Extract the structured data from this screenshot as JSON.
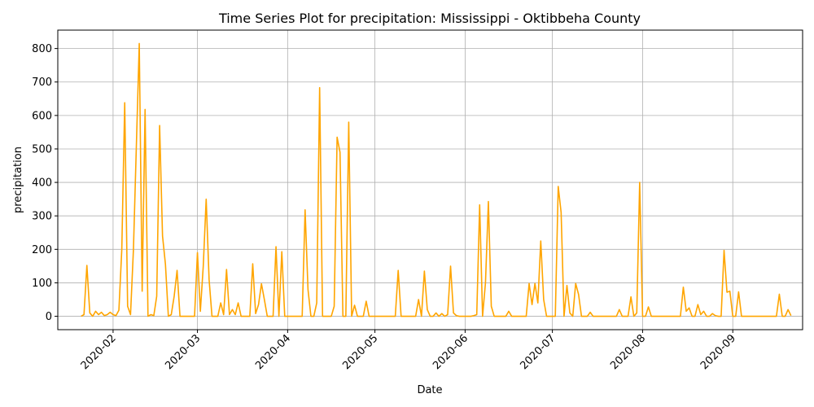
{
  "chart_data": {
    "type": "line",
    "title": "Time Series Plot for precipitation: Mississippi - Oktibbeha County",
    "xlabel": "Date",
    "ylabel": "precipitation",
    "ylim": [
      -40,
      855
    ],
    "xlim": [
      "2020-01-13",
      "2020-09-25"
    ],
    "grid": true,
    "line_color": "#ffa500",
    "yticks": [
      0,
      100,
      200,
      300,
      400,
      500,
      600,
      700,
      800
    ],
    "xticks": [
      {
        "date": "2020-02-01",
        "label": "2020-02"
      },
      {
        "date": "2020-03-01",
        "label": "2020-03"
      },
      {
        "date": "2020-04-01",
        "label": "2020-04"
      },
      {
        "date": "2020-05-01",
        "label": "2020-05"
      },
      {
        "date": "2020-06-01",
        "label": "2020-06"
      },
      {
        "date": "2020-07-01",
        "label": "2020-07"
      },
      {
        "date": "2020-08-01",
        "label": "2020-08"
      },
      {
        "date": "2020-09-01",
        "label": "2020-09"
      }
    ],
    "series": [
      {
        "points": [
          [
            "2020-01-21",
            0
          ],
          [
            "2020-01-22",
            5
          ],
          [
            "2020-01-23",
            152
          ],
          [
            "2020-01-24",
            10
          ],
          [
            "2020-01-25",
            0
          ],
          [
            "2020-01-26",
            15
          ],
          [
            "2020-01-27",
            5
          ],
          [
            "2020-01-28",
            12
          ],
          [
            "2020-01-29",
            2
          ],
          [
            "2020-01-30",
            5
          ],
          [
            "2020-01-31",
            12
          ],
          [
            "2020-02-01",
            5
          ],
          [
            "2020-02-02",
            2
          ],
          [
            "2020-02-03",
            18
          ],
          [
            "2020-02-04",
            200
          ],
          [
            "2020-02-05",
            638
          ],
          [
            "2020-02-06",
            30
          ],
          [
            "2020-02-07",
            5
          ],
          [
            "2020-02-08",
            200
          ],
          [
            "2020-02-10",
            815
          ],
          [
            "2020-02-11",
            75
          ],
          [
            "2020-02-12",
            618
          ],
          [
            "2020-02-13",
            0
          ],
          [
            "2020-02-14",
            5
          ],
          [
            "2020-02-15",
            2
          ],
          [
            "2020-02-16",
            60
          ],
          [
            "2020-02-17",
            570
          ],
          [
            "2020-02-18",
            240
          ],
          [
            "2020-02-19",
            155
          ],
          [
            "2020-02-20",
            0
          ],
          [
            "2020-02-21",
            5
          ],
          [
            "2020-02-22",
            60
          ],
          [
            "2020-02-23",
            137
          ],
          [
            "2020-02-24",
            0
          ],
          [
            "2020-02-25",
            0
          ],
          [
            "2020-02-26",
            0
          ],
          [
            "2020-02-27",
            0
          ],
          [
            "2020-02-28",
            0
          ],
          [
            "2020-02-29",
            0
          ],
          [
            "2020-03-01",
            190
          ],
          [
            "2020-03-02",
            15
          ],
          [
            "2020-03-03",
            150
          ],
          [
            "2020-03-04",
            350
          ],
          [
            "2020-03-05",
            110
          ],
          [
            "2020-03-06",
            0
          ],
          [
            "2020-03-07",
            0
          ],
          [
            "2020-03-08",
            0
          ],
          [
            "2020-03-09",
            40
          ],
          [
            "2020-03-10",
            5
          ],
          [
            "2020-03-11",
            140
          ],
          [
            "2020-03-12",
            5
          ],
          [
            "2020-03-13",
            20
          ],
          [
            "2020-03-14",
            5
          ],
          [
            "2020-03-15",
            40
          ],
          [
            "2020-03-16",
            0
          ],
          [
            "2020-03-17",
            0
          ],
          [
            "2020-03-18",
            0
          ],
          [
            "2020-03-19",
            0
          ],
          [
            "2020-03-20",
            157
          ],
          [
            "2020-03-21",
            8
          ],
          [
            "2020-03-22",
            35
          ],
          [
            "2020-03-23",
            97
          ],
          [
            "2020-03-24",
            50
          ],
          [
            "2020-03-25",
            0
          ],
          [
            "2020-03-26",
            0
          ],
          [
            "2020-03-27",
            0
          ],
          [
            "2020-03-28",
            208
          ],
          [
            "2020-03-29",
            0
          ],
          [
            "2020-03-30",
            193
          ],
          [
            "2020-03-31",
            0
          ],
          [
            "2020-04-01",
            0
          ],
          [
            "2020-04-02",
            0
          ],
          [
            "2020-04-03",
            0
          ],
          [
            "2020-04-04",
            0
          ],
          [
            "2020-04-05",
            0
          ],
          [
            "2020-04-06",
            0
          ],
          [
            "2020-04-07",
            318
          ],
          [
            "2020-04-08",
            80
          ],
          [
            "2020-04-09",
            0
          ],
          [
            "2020-04-10",
            0
          ],
          [
            "2020-04-11",
            40
          ],
          [
            "2020-04-12",
            683
          ],
          [
            "2020-04-13",
            0
          ],
          [
            "2020-04-14",
            0
          ],
          [
            "2020-04-15",
            0
          ],
          [
            "2020-04-16",
            0
          ],
          [
            "2020-04-17",
            30
          ],
          [
            "2020-04-18",
            535
          ],
          [
            "2020-04-19",
            490
          ],
          [
            "2020-04-20",
            0
          ],
          [
            "2020-04-21",
            0
          ],
          [
            "2020-04-22",
            580
          ],
          [
            "2020-04-23",
            0
          ],
          [
            "2020-04-24",
            33
          ],
          [
            "2020-04-25",
            0
          ],
          [
            "2020-04-26",
            0
          ],
          [
            "2020-04-27",
            0
          ],
          [
            "2020-04-28",
            45
          ],
          [
            "2020-04-29",
            0
          ],
          [
            "2020-04-30",
            0
          ],
          [
            "2020-05-01",
            0
          ],
          [
            "2020-05-02",
            0
          ],
          [
            "2020-05-03",
            0
          ],
          [
            "2020-05-04",
            0
          ],
          [
            "2020-05-05",
            0
          ],
          [
            "2020-05-06",
            0
          ],
          [
            "2020-05-07",
            0
          ],
          [
            "2020-05-08",
            0
          ],
          [
            "2020-05-09",
            137
          ],
          [
            "2020-05-10",
            0
          ],
          [
            "2020-05-11",
            0
          ],
          [
            "2020-05-12",
            0
          ],
          [
            "2020-05-13",
            0
          ],
          [
            "2020-05-14",
            0
          ],
          [
            "2020-05-15",
            0
          ],
          [
            "2020-05-16",
            50
          ],
          [
            "2020-05-17",
            0
          ],
          [
            "2020-05-18",
            135
          ],
          [
            "2020-05-19",
            20
          ],
          [
            "2020-05-20",
            0
          ],
          [
            "2020-05-21",
            0
          ],
          [
            "2020-05-22",
            10
          ],
          [
            "2020-05-23",
            0
          ],
          [
            "2020-05-24",
            8
          ],
          [
            "2020-05-25",
            0
          ],
          [
            "2020-05-26",
            5
          ],
          [
            "2020-05-27",
            150
          ],
          [
            "2020-05-28",
            10
          ],
          [
            "2020-05-29",
            2
          ],
          [
            "2020-05-30",
            0
          ],
          [
            "2020-05-31",
            0
          ],
          [
            "2020-06-01",
            0
          ],
          [
            "2020-06-02",
            0
          ],
          [
            "2020-06-03",
            0
          ],
          [
            "2020-06-04",
            2
          ],
          [
            "2020-06-05",
            5
          ],
          [
            "2020-06-06",
            333
          ],
          [
            "2020-06-07",
            0
          ],
          [
            "2020-06-08",
            100
          ],
          [
            "2020-06-09",
            343
          ],
          [
            "2020-06-10",
            30
          ],
          [
            "2020-06-11",
            0
          ],
          [
            "2020-06-12",
            0
          ],
          [
            "2020-06-13",
            0
          ],
          [
            "2020-06-14",
            0
          ],
          [
            "2020-06-15",
            0
          ],
          [
            "2020-06-16",
            15
          ],
          [
            "2020-06-17",
            0
          ],
          [
            "2020-06-18",
            0
          ],
          [
            "2020-06-19",
            0
          ],
          [
            "2020-06-20",
            0
          ],
          [
            "2020-06-21",
            0
          ],
          [
            "2020-06-22",
            0
          ],
          [
            "2020-06-23",
            98
          ],
          [
            "2020-06-24",
            35
          ],
          [
            "2020-06-25",
            98
          ],
          [
            "2020-06-26",
            40
          ],
          [
            "2020-06-27",
            225
          ],
          [
            "2020-06-28",
            50
          ],
          [
            "2020-06-29",
            0
          ],
          [
            "2020-06-30",
            0
          ],
          [
            "2020-07-01",
            0
          ],
          [
            "2020-07-02",
            0
          ],
          [
            "2020-07-03",
            388
          ],
          [
            "2020-07-04",
            310
          ],
          [
            "2020-07-05",
            0
          ],
          [
            "2020-07-06",
            92
          ],
          [
            "2020-07-07",
            10
          ],
          [
            "2020-07-08",
            0
          ],
          [
            "2020-07-09",
            98
          ],
          [
            "2020-07-10",
            65
          ],
          [
            "2020-07-11",
            0
          ],
          [
            "2020-07-12",
            0
          ],
          [
            "2020-07-13",
            0
          ],
          [
            "2020-07-14",
            12
          ],
          [
            "2020-07-15",
            0
          ],
          [
            "2020-07-16",
            0
          ],
          [
            "2020-07-17",
            0
          ],
          [
            "2020-07-18",
            0
          ],
          [
            "2020-07-19",
            0
          ],
          [
            "2020-07-20",
            0
          ],
          [
            "2020-07-21",
            0
          ],
          [
            "2020-07-22",
            0
          ],
          [
            "2020-07-23",
            0
          ],
          [
            "2020-07-24",
            20
          ],
          [
            "2020-07-25",
            0
          ],
          [
            "2020-07-26",
            0
          ],
          [
            "2020-07-27",
            0
          ],
          [
            "2020-07-28",
            58
          ],
          [
            "2020-07-29",
            0
          ],
          [
            "2020-07-30",
            10
          ],
          [
            "2020-07-31",
            400
          ],
          [
            "2020-08-01",
            0
          ],
          [
            "2020-08-02",
            0
          ],
          [
            "2020-08-03",
            28
          ],
          [
            "2020-08-04",
            0
          ],
          [
            "2020-08-05",
            0
          ],
          [
            "2020-08-06",
            0
          ],
          [
            "2020-08-07",
            0
          ],
          [
            "2020-08-08",
            0
          ],
          [
            "2020-08-09",
            0
          ],
          [
            "2020-08-10",
            0
          ],
          [
            "2020-08-11",
            0
          ],
          [
            "2020-08-12",
            0
          ],
          [
            "2020-08-13",
            0
          ],
          [
            "2020-08-14",
            0
          ],
          [
            "2020-08-15",
            87
          ],
          [
            "2020-08-16",
            15
          ],
          [
            "2020-08-17",
            25
          ],
          [
            "2020-08-18",
            0
          ],
          [
            "2020-08-19",
            0
          ],
          [
            "2020-08-20",
            35
          ],
          [
            "2020-08-21",
            5
          ],
          [
            "2020-08-22",
            15
          ],
          [
            "2020-08-23",
            0
          ],
          [
            "2020-08-24",
            0
          ],
          [
            "2020-08-25",
            8
          ],
          [
            "2020-08-26",
            2
          ],
          [
            "2020-08-27",
            0
          ],
          [
            "2020-08-28",
            0
          ],
          [
            "2020-08-29",
            197
          ],
          [
            "2020-08-30",
            72
          ],
          [
            "2020-08-31",
            75
          ],
          [
            "2020-09-01",
            0
          ],
          [
            "2020-09-02",
            0
          ],
          [
            "2020-09-03",
            73
          ],
          [
            "2020-09-04",
            0
          ],
          [
            "2020-09-05",
            0
          ],
          [
            "2020-09-06",
            0
          ],
          [
            "2020-09-07",
            0
          ],
          [
            "2020-09-08",
            0
          ],
          [
            "2020-09-09",
            0
          ],
          [
            "2020-09-10",
            0
          ],
          [
            "2020-09-11",
            0
          ],
          [
            "2020-09-12",
            0
          ],
          [
            "2020-09-13",
            0
          ],
          [
            "2020-09-14",
            0
          ],
          [
            "2020-09-15",
            0
          ],
          [
            "2020-09-16",
            0
          ],
          [
            "2020-09-17",
            66
          ],
          [
            "2020-09-18",
            0
          ],
          [
            "2020-09-19",
            0
          ],
          [
            "2020-09-20",
            20
          ],
          [
            "2020-09-21",
            2
          ]
        ]
      }
    ]
  }
}
